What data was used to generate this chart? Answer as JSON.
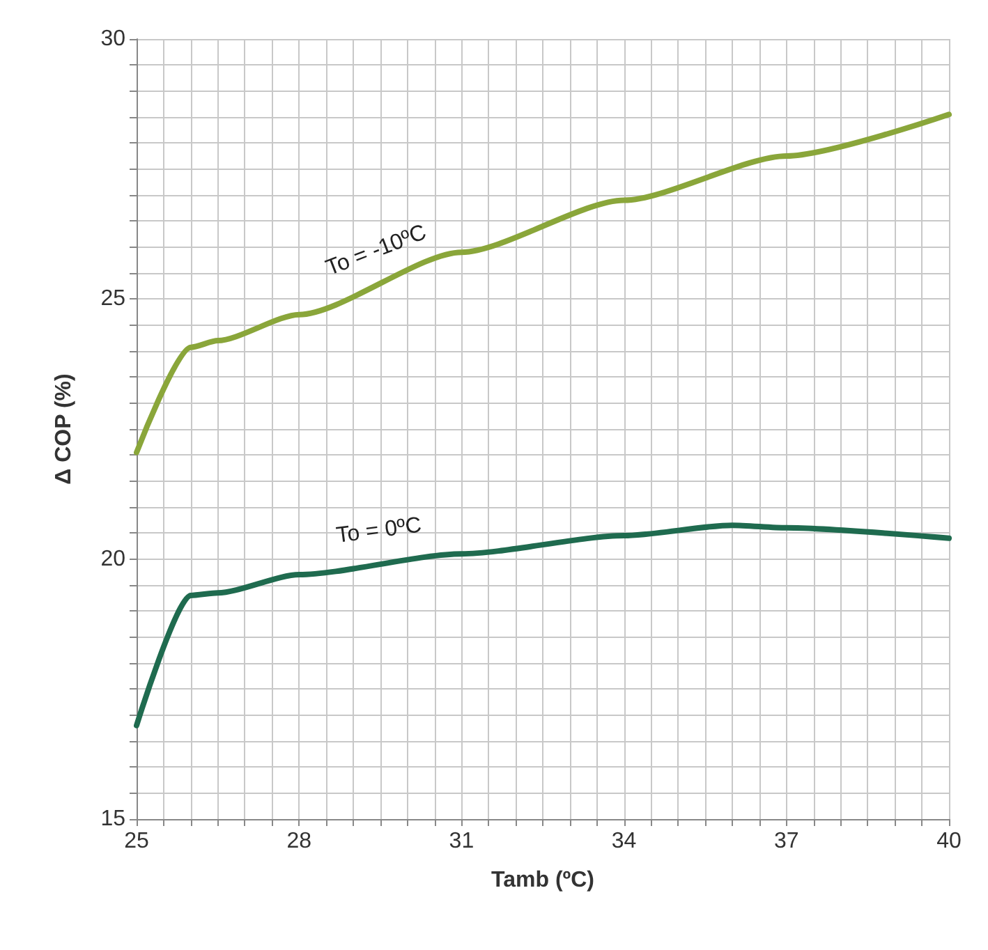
{
  "chart_data": {
    "type": "line",
    "xlabel": "Tamb (ºC)",
    "ylabel": "Δ COP (%)",
    "xlim": [
      25,
      40
    ],
    "ylim": [
      15,
      30
    ],
    "xticks": [
      25,
      {
        "value": 25.5,
        "label": null
      },
      {
        "value": 26,
        "label": null
      },
      {
        "value": 26.5,
        "label": null
      },
      {
        "value": 27,
        "label": null
      },
      {
        "value": 27.5,
        "label": null
      },
      28,
      {
        "value": 28.5,
        "label": null
      },
      {
        "value": 29,
        "label": null
      },
      {
        "value": 29.5,
        "label": null
      },
      {
        "value": 30,
        "label": null
      },
      {
        "value": 30.5,
        "label": null
      },
      31,
      {
        "value": 31.5,
        "label": null
      },
      {
        "value": 32,
        "label": null
      },
      {
        "value": 32.5,
        "label": null
      },
      {
        "value": 33,
        "label": null
      },
      {
        "value": 33.5,
        "label": null
      },
      34,
      {
        "value": 34.5,
        "label": null
      },
      {
        "value": 35,
        "label": null
      },
      {
        "value": 35.5,
        "label": null
      },
      {
        "value": 36,
        "label": null
      },
      {
        "value": 36.5,
        "label": null
      },
      37,
      {
        "value": 37.5,
        "label": null
      },
      {
        "value": 38,
        "label": null
      },
      {
        "value": 38.5,
        "label": null
      },
      {
        "value": 39,
        "label": null
      },
      {
        "value": 39.5,
        "label": null
      },
      40
    ],
    "yticks": [
      15,
      {
        "value": 15.5,
        "label": null
      },
      {
        "value": 16,
        "label": null
      },
      {
        "value": 16.5,
        "label": null
      },
      {
        "value": 17,
        "label": null
      },
      {
        "value": 17.5,
        "label": null
      },
      {
        "value": 18,
        "label": null
      },
      {
        "value": 18.5,
        "label": null
      },
      {
        "value": 19,
        "label": null
      },
      {
        "value": 19.5,
        "label": null
      },
      20,
      {
        "value": 20.5,
        "label": null
      },
      {
        "value": 21,
        "label": null
      },
      {
        "value": 21.5,
        "label": null
      },
      {
        "value": 22,
        "label": null
      },
      {
        "value": 22.5,
        "label": null
      },
      {
        "value": 23,
        "label": null
      },
      {
        "value": 23.5,
        "label": null
      },
      {
        "value": 24,
        "label": null
      },
      {
        "value": 24.5,
        "label": null
      },
      25,
      {
        "value": 25.5,
        "label": null
      },
      {
        "value": 26,
        "label": null
      },
      {
        "value": 26.5,
        "label": null
      },
      {
        "value": 27,
        "label": null
      },
      {
        "value": 27.5,
        "label": null
      },
      {
        "value": 28,
        "label": null
      },
      {
        "value": 28.5,
        "label": null
      },
      {
        "value": 29,
        "label": null
      },
      {
        "value": 29.5,
        "label": null
      },
      30
    ],
    "grid": true,
    "marker": "none",
    "line_style": "solid",
    "series": [
      {
        "color": "#8aa63a",
        "x": [
          25,
          26,
          26.5,
          28,
          31,
          34,
          37,
          40
        ],
        "values": [
          22.05,
          24.07,
          24.2,
          24.7,
          25.9,
          26.9,
          27.75,
          28.55
        ]
      },
      {
        "color": "#1f6b4f",
        "x": [
          25,
          26,
          26.5,
          28,
          31,
          34,
          36,
          37,
          40
        ],
        "values": [
          16.8,
          19.3,
          19.35,
          19.7,
          20.1,
          20.45,
          20.65,
          20.6,
          20.4
        ]
      }
    ],
    "annotations": [
      "To = -10ºC",
      "To = 0ºC"
    ]
  }
}
